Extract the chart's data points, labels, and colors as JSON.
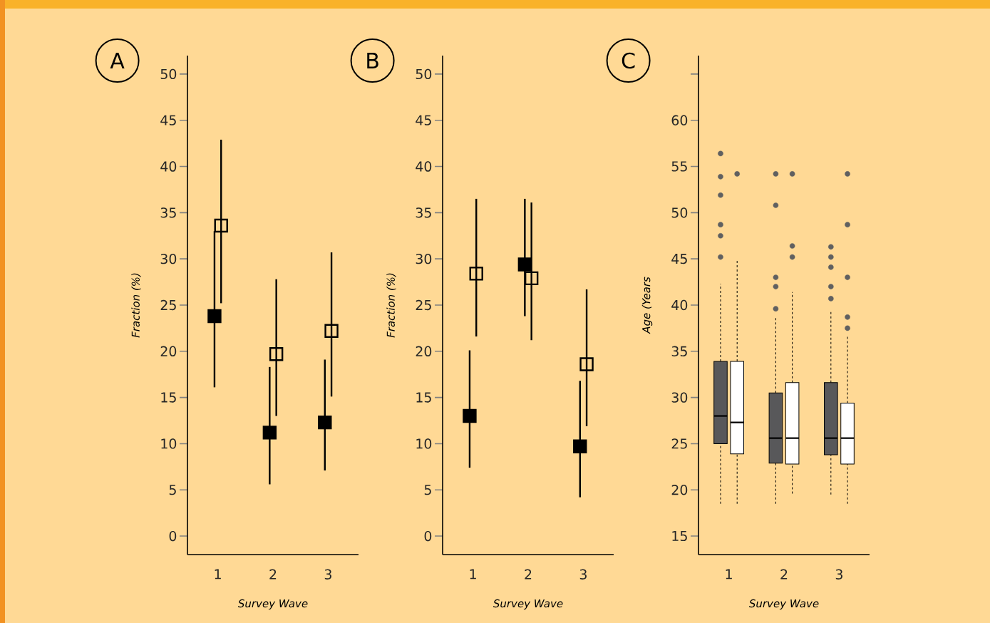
{
  "chart_data": [
    {
      "type": "scatter",
      "annotations": [
        "A"
      ],
      "xlabel": "Survey Wave",
      "ylabel": "Fraction (%)",
      "categories": [
        "1",
        "2",
        "3"
      ],
      "ylim": [
        -2,
        52
      ],
      "yticks": [
        0,
        5,
        10,
        15,
        20,
        25,
        30,
        35,
        40,
        45,
        50
      ],
      "series": [
        {
          "color": "#000000",
          "marker": "square",
          "values": [
            23.8,
            11.2,
            12.3
          ],
          "errors": [
            [
              16.1,
              33.0
            ],
            [
              5.6,
              18.3
            ],
            [
              7.1,
              19.1
            ]
          ]
        },
        {
          "color": "#000000",
          "marker": "square",
          "values": [
            33.6,
            19.7,
            22.2
          ],
          "errors": [
            [
              25.2,
              42.9
            ],
            [
              13.0,
              27.8
            ],
            [
              15.1,
              30.7
            ]
          ]
        }
      ]
    },
    {
      "type": "scatter",
      "annotations": [
        "B"
      ],
      "xlabel": "Survey Wave",
      "ylabel": "Fraction (%)",
      "categories": [
        "1",
        "2",
        "3"
      ],
      "ylim": [
        -2,
        52
      ],
      "yticks": [
        0,
        5,
        10,
        15,
        20,
        25,
        30,
        35,
        40,
        45,
        50
      ],
      "series": [
        {
          "color": "#000000",
          "marker": "square",
          "values": [
            13.0,
            29.4,
            9.7
          ],
          "errors": [
            [
              7.4,
              20.1
            ],
            [
              23.8,
              36.5
            ],
            [
              4.2,
              16.8
            ]
          ]
        },
        {
          "color": "#000000",
          "marker": "square",
          "values": [
            28.4,
            27.9,
            18.6
          ],
          "errors": [
            [
              21.6,
              36.5
            ],
            [
              21.2,
              36.1
            ],
            [
              11.9,
              26.7
            ]
          ]
        }
      ]
    },
    {
      "type": "box",
      "annotations": [
        "C"
      ],
      "xlabel": "Survey Wave",
      "ylabel": "Age (Years",
      "categories": [
        "1",
        "2",
        "3"
      ],
      "ylim": [
        13,
        67
      ],
      "yticks": [
        15,
        20,
        25,
        30,
        35,
        40,
        45,
        50,
        55,
        60,
        {
          "value": 65,
          "label": null
        }
      ],
      "line_style": "dashed",
      "series": [
        {
          "color": "#58585a",
          "boxes": [
            {
              "low": 18.5,
              "q1": 25.0,
              "median": 28.0,
              "q3": 33.9,
              "high": 42.3,
              "outliers": [
                56.4,
                53.9,
                51.9,
                48.7,
                47.5,
                45.2
              ]
            },
            {
              "low": 18.5,
              "q1": 22.9,
              "median": 25.6,
              "q3": 30.5,
              "high": 38.6,
              "outliers": [
                54.2,
                50.8,
                43.0,
                42.0,
                39.6
              ]
            },
            {
              "low": 19.5,
              "q1": 23.8,
              "median": 25.6,
              "q3": 31.6,
              "high": 39.4,
              "outliers": [
                46.3,
                45.2,
                44.1,
                42.0,
                40.7
              ]
            }
          ]
        },
        {
          "color": "#ffffff",
          "boxes": [
            {
              "low": 18.5,
              "q1": 23.9,
              "median": 27.3,
              "q3": 33.9,
              "high": 44.9,
              "outliers": [
                54.2
              ]
            },
            {
              "low": 19.6,
              "q1": 22.8,
              "median": 25.6,
              "q3": 31.6,
              "high": 41.4,
              "outliers": [
                54.2,
                46.4,
                45.2
              ]
            },
            {
              "low": 18.5,
              "q1": 22.8,
              "median": 25.6,
              "q3": 29.4,
              "high": 36.6,
              "outliers": [
                54.2,
                48.7,
                43.0,
                38.7,
                37.5
              ]
            }
          ]
        }
      ]
    }
  ]
}
